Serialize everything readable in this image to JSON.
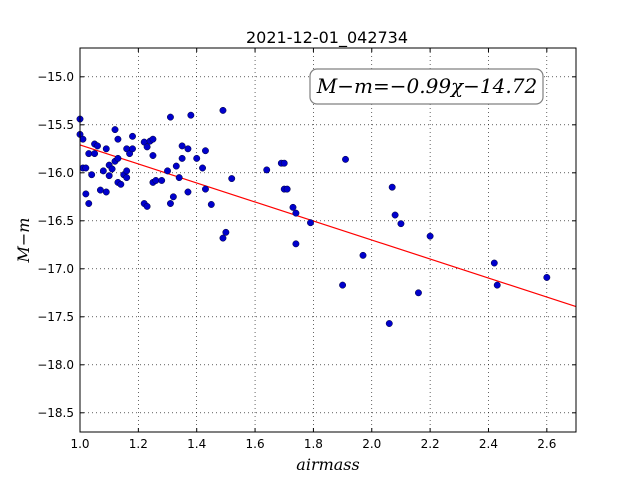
{
  "chart_data": {
    "type": "scatter",
    "title": "2021-12-01_042734",
    "xlabel": "airmass",
    "ylabel": "M−m",
    "xlim": [
      1.0,
      2.7
    ],
    "ylim": [
      -18.7,
      -14.7
    ],
    "xticks": [
      "1.0",
      "1.2",
      "1.4",
      "1.6",
      "1.8",
      "2.0",
      "2.2",
      "2.4",
      "2.6"
    ],
    "yticks": [
      "−15.0",
      "−15.5",
      "−16.0",
      "−16.5",
      "−17.0",
      "−17.5",
      "−18.0",
      "−18.5"
    ],
    "grid": true,
    "annotation": "M−m=−0.99χ−14.72",
    "fit": {
      "slope": -0.99,
      "intercept": -14.72,
      "color": "#ff0000"
    },
    "point_color": "#0000cc",
    "points": [
      [
        1.0,
        -15.44
      ],
      [
        1.0,
        -15.6
      ],
      [
        1.01,
        -15.65
      ],
      [
        1.01,
        -15.95
      ],
      [
        1.02,
        -15.95
      ],
      [
        1.02,
        -16.22
      ],
      [
        1.03,
        -16.32
      ],
      [
        1.03,
        -15.8
      ],
      [
        1.04,
        -16.02
      ],
      [
        1.05,
        -15.7
      ],
      [
        1.05,
        -15.8
      ],
      [
        1.06,
        -15.72
      ],
      [
        1.07,
        -16.18
      ],
      [
        1.08,
        -15.98
      ],
      [
        1.09,
        -15.75
      ],
      [
        1.09,
        -16.2
      ],
      [
        1.1,
        -16.03
      ],
      [
        1.1,
        -15.92
      ],
      [
        1.11,
        -15.96
      ],
      [
        1.12,
        -15.55
      ],
      [
        1.12,
        -15.88
      ],
      [
        1.13,
        -15.85
      ],
      [
        1.13,
        -15.65
      ],
      [
        1.13,
        -16.1
      ],
      [
        1.14,
        -16.12
      ],
      [
        1.15,
        -16.02
      ],
      [
        1.16,
        -16.05
      ],
      [
        1.16,
        -15.98
      ],
      [
        1.16,
        -15.75
      ],
      [
        1.17,
        -15.8
      ],
      [
        1.18,
        -15.62
      ],
      [
        1.18,
        -15.75
      ],
      [
        1.22,
        -16.32
      ],
      [
        1.22,
        -15.68
      ],
      [
        1.23,
        -16.35
      ],
      [
        1.23,
        -15.73
      ],
      [
        1.24,
        -15.67
      ],
      [
        1.25,
        -15.65
      ],
      [
        1.25,
        -15.82
      ],
      [
        1.25,
        -16.1
      ],
      [
        1.26,
        -16.08
      ],
      [
        1.28,
        -16.08
      ],
      [
        1.3,
        -15.98
      ],
      [
        1.31,
        -16.32
      ],
      [
        1.31,
        -15.42
      ],
      [
        1.32,
        -16.25
      ],
      [
        1.33,
        -15.93
      ],
      [
        1.34,
        -16.05
      ],
      [
        1.35,
        -15.85
      ],
      [
        1.35,
        -15.72
      ],
      [
        1.37,
        -15.75
      ],
      [
        1.37,
        -16.2
      ],
      [
        1.38,
        -15.4
      ],
      [
        1.4,
        -15.85
      ],
      [
        1.42,
        -15.95
      ],
      [
        1.43,
        -15.77
      ],
      [
        1.43,
        -16.17
      ],
      [
        1.45,
        -16.33
      ],
      [
        1.49,
        -15.35
      ],
      [
        1.49,
        -16.68
      ],
      [
        1.5,
        -16.62
      ],
      [
        1.52,
        -16.06
      ],
      [
        1.64,
        -15.97
      ],
      [
        1.69,
        -15.9
      ],
      [
        1.7,
        -15.9
      ],
      [
        1.7,
        -16.17
      ],
      [
        1.71,
        -16.17
      ],
      [
        1.73,
        -16.36
      ],
      [
        1.74,
        -16.42
      ],
      [
        1.74,
        -16.74
      ],
      [
        1.79,
        -16.52
      ],
      [
        1.9,
        -17.17
      ],
      [
        1.91,
        -15.86
      ],
      [
        1.97,
        -16.86
      ],
      [
        2.06,
        -17.57
      ],
      [
        2.07,
        -16.15
      ],
      [
        2.08,
        -16.44
      ],
      [
        2.1,
        -16.53
      ],
      [
        2.16,
        -17.25
      ],
      [
        2.2,
        -16.66
      ],
      [
        2.42,
        -16.94
      ],
      [
        2.43,
        -17.17
      ],
      [
        2.6,
        -17.09
      ]
    ]
  }
}
